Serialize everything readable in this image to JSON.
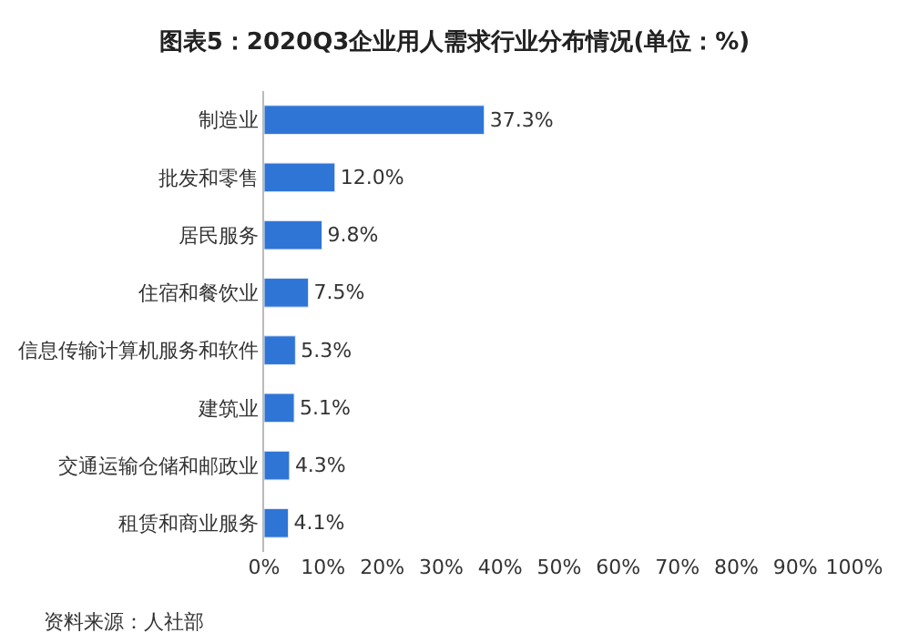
{
  "chart_data": {
    "type": "bar",
    "orientation": "horizontal",
    "title": "图表5：2020Q3企业用人需求行业分布情况(单位：%)",
    "categories": [
      "制造业",
      "批发和零售",
      "居民服务",
      "住宿和餐饮业",
      "信息传输计算机服务和软件",
      "建筑业",
      "交通运输仓储和邮政业",
      "租赁和商业服务"
    ],
    "values": [
      37.3,
      12.0,
      9.8,
      7.5,
      5.3,
      5.1,
      4.3,
      4.1
    ],
    "value_labels": [
      "37.3%",
      "12.0%",
      "9.8%",
      "7.5%",
      "5.3%",
      "5.1%",
      "4.3%",
      "4.1%"
    ],
    "color": "#2e75d6",
    "xlim": [
      0,
      100
    ],
    "xticks": [
      {
        "value": 0,
        "label": "0%"
      },
      {
        "value": 10,
        "label": "10%"
      },
      {
        "value": 20,
        "label": "20%"
      },
      {
        "value": 30,
        "label": "30%"
      },
      {
        "value": 40,
        "label": "40%"
      },
      {
        "value": 50,
        "label": "50%"
      },
      {
        "value": 60,
        "label": "60%"
      },
      {
        "value": 70,
        "label": "70%"
      },
      {
        "value": 80,
        "label": "80%"
      },
      {
        "value": 90,
        "label": "90%"
      },
      {
        "value": 100,
        "label": "100%"
      }
    ],
    "grid": false,
    "legend": false,
    "annotations": [
      "资料来源：人社部"
    ]
  }
}
